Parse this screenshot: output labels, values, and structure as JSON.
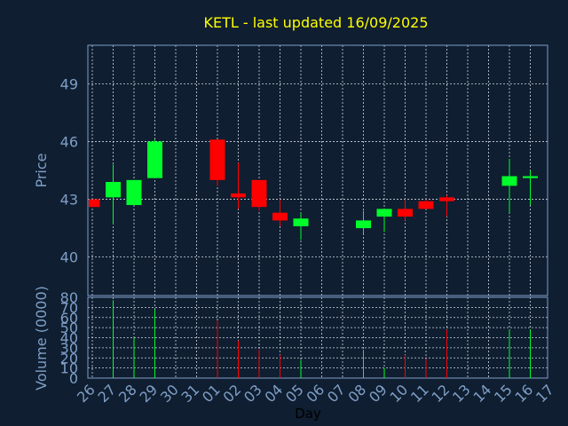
{
  "colors": {
    "background": "#0f1e30",
    "title": "#ffff00",
    "axis_text": "#7f9fc7",
    "axis_line": "#7f9fc7",
    "grid": "#d0d8e4",
    "up": "#00ff2a",
    "down": "#ff0000",
    "xlabel": "#000000"
  },
  "chart_data": {
    "type": "candlestick",
    "title": "KETL - last updated 16/09/2025",
    "xlabel": "Day",
    "price_panel": {
      "ylabel": "Price",
      "ylim": [
        38,
        51
      ],
      "yticks": [
        40,
        43,
        46,
        49
      ],
      "grid": true
    },
    "volume_panel": {
      "ylabel": "Volume (0000)",
      "ylim": [
        0,
        80
      ],
      "yticks": [
        0,
        10,
        20,
        30,
        40,
        50,
        60,
        70,
        80
      ],
      "grid": true
    },
    "x_ticks": [
      "26",
      "27",
      "28",
      "29",
      "30",
      "31",
      "01",
      "02",
      "03",
      "04",
      "05",
      "06",
      "07",
      "08",
      "09",
      "10",
      "11",
      "12",
      "13",
      "14",
      "15",
      "16",
      "17"
    ],
    "candles": [
      {
        "day": "26",
        "open": 43.0,
        "close": 42.6,
        "high": 43.0,
        "low": 42.6,
        "volume": 0
      },
      {
        "day": "27",
        "open": 43.1,
        "close": 43.9,
        "high": 44.8,
        "low": 41.7,
        "volume": 77
      },
      {
        "day": "28",
        "open": 42.7,
        "close": 44.0,
        "high": 44.0,
        "low": 42.7,
        "volume": 40
      },
      {
        "day": "29",
        "open": 44.1,
        "close": 46.0,
        "high": 46.1,
        "low": 44.1,
        "volume": 68
      },
      {
        "day": "01",
        "open": 46.1,
        "close": 44.0,
        "high": 46.1,
        "low": 43.7,
        "volume": 57
      },
      {
        "day": "02",
        "open": 43.3,
        "close": 43.1,
        "high": 44.9,
        "low": 42.5,
        "volume": 37
      },
      {
        "day": "03",
        "open": 44.0,
        "close": 42.6,
        "high": 44.0,
        "low": 42.4,
        "volume": 28
      },
      {
        "day": "04",
        "open": 42.3,
        "close": 41.9,
        "high": 43.0,
        "low": 41.6,
        "volume": 23
      },
      {
        "day": "05",
        "open": 41.6,
        "close": 42.0,
        "high": 42.3,
        "low": 40.9,
        "volume": 18
      },
      {
        "day": "08",
        "open": 41.5,
        "close": 41.9,
        "high": 42.4,
        "low": 41.2,
        "volume": 28
      },
      {
        "day": "09",
        "open": 42.1,
        "close": 42.5,
        "high": 42.5,
        "low": 41.3,
        "volume": 10
      },
      {
        "day": "10",
        "open": 42.5,
        "close": 42.1,
        "high": 43.0,
        "low": 41.9,
        "volume": 23
      },
      {
        "day": "11",
        "open": 42.9,
        "close": 42.5,
        "high": 43.0,
        "low": 42.5,
        "volume": 19
      },
      {
        "day": "12",
        "open": 43.1,
        "close": 42.9,
        "high": 43.2,
        "low": 42.1,
        "volume": 48
      },
      {
        "day": "15",
        "open": 43.7,
        "close": 44.2,
        "high": 45.1,
        "low": 42.3,
        "volume": 48
      },
      {
        "day": "16",
        "open": 44.1,
        "close": 44.2,
        "high": 44.5,
        "low": 42.7,
        "volume": 48
      }
    ]
  }
}
